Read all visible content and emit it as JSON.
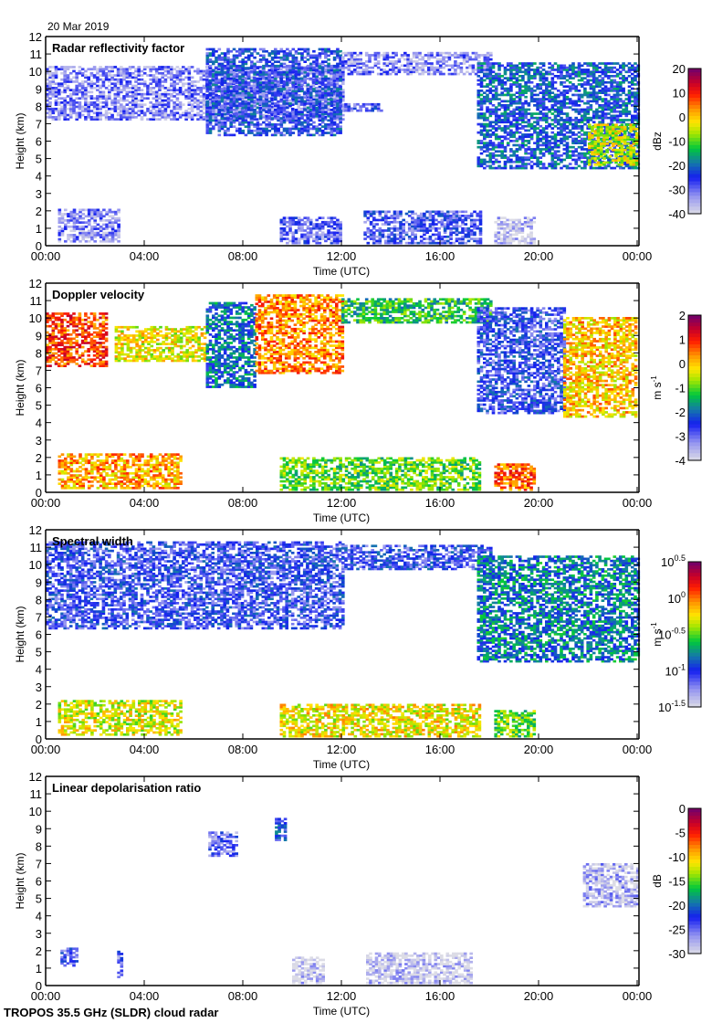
{
  "figure": {
    "date": "20 Mar 2019",
    "footer": "TROPOS 35.5 GHz (SLDR) cloud radar"
  },
  "chart_data": [
    {
      "type": "heatmap",
      "title": "Radar reflectivity factor",
      "xlabel": "Time (UTC)",
      "ylabel": "Height (km)",
      "x_ticks": [
        "00:00",
        "04:00",
        "08:00",
        "12:00",
        "16:00",
        "20:00",
        "00:00"
      ],
      "xlim_hours": [
        0,
        24
      ],
      "y_ticks": [
        0,
        1,
        2,
        3,
        4,
        5,
        6,
        7,
        8,
        9,
        10,
        11,
        12
      ],
      "ylim": [
        0,
        12
      ],
      "colorbar": {
        "label": "dBz",
        "ticks": [
          "-40",
          "-30",
          "-20",
          "-10",
          "0",
          "10",
          "20"
        ],
        "range": [
          -40,
          20
        ]
      },
      "features": [
        {
          "desc": "upper cloud layer",
          "t_start": 0,
          "t_end": 12.0,
          "h_bottom": 7.2,
          "h_top": 10.3,
          "value": -32
        },
        {
          "desc": "thickening cirrus",
          "t_start": 6.5,
          "t_end": 12.0,
          "h_bottom": 6.3,
          "h_top": 11.3,
          "value": -25
        },
        {
          "desc": "cirrus top",
          "t_start": 12.0,
          "t_end": 18.0,
          "h_bottom": 9.8,
          "h_top": 11.0,
          "value": -32
        },
        {
          "desc": "layer near 8 km",
          "t_start": 12.0,
          "t_end": 13.6,
          "h_bottom": 7.7,
          "h_top": 8.1,
          "value": -28
        },
        {
          "desc": "evening descending cloud",
          "t_start": 17.5,
          "t_end": 24.0,
          "h_bottom": 4.4,
          "h_top": 10.5,
          "value": -22
        },
        {
          "desc": "strong core near end",
          "t_start": 22.0,
          "t_end": 24.0,
          "h_bottom": 4.6,
          "h_top": 7.0,
          "value": -5
        },
        {
          "desc": "boundary layer echoes",
          "t_start": 0.5,
          "t_end": 3.0,
          "h_bottom": 0.2,
          "h_top": 2.1,
          "value": -32
        },
        {
          "desc": "boundary layer echoes",
          "t_start": 9.5,
          "t_end": 12.0,
          "h_bottom": 0.1,
          "h_top": 1.6,
          "value": -30
        },
        {
          "desc": "boundary layer echoes",
          "t_start": 12.9,
          "t_end": 17.6,
          "h_bottom": 0.1,
          "h_top": 2.0,
          "value": -28
        },
        {
          "desc": "boundary layer echoes",
          "t_start": 18.2,
          "t_end": 19.8,
          "h_bottom": 0.1,
          "h_top": 1.6,
          "value": -38
        }
      ]
    },
    {
      "type": "heatmap",
      "title": "Doppler velocity",
      "xlabel": "Time (UTC)",
      "ylabel": "Height (km)",
      "x_ticks": [
        "00:00",
        "04:00",
        "08:00",
        "12:00",
        "16:00",
        "20:00",
        "00:00"
      ],
      "xlim_hours": [
        0,
        24
      ],
      "y_ticks": [
        0,
        1,
        2,
        3,
        4,
        5,
        6,
        7,
        8,
        9,
        10,
        11,
        12
      ],
      "ylim": [
        0,
        12
      ],
      "colorbar": {
        "label": "m s-1",
        "ticks": [
          "-4",
          "-3",
          "-2",
          "-1",
          "0",
          "1",
          "2"
        ],
        "range": [
          -4,
          2
        ]
      },
      "features": [
        {
          "desc": "upper cloud early",
          "t_start": 0,
          "t_end": 2.5,
          "h_bottom": 7.2,
          "h_top": 10.3,
          "value": 0.8
        },
        {
          "desc": "upper cloud mid",
          "t_start": 2.8,
          "t_end": 6.5,
          "h_bottom": 7.5,
          "h_top": 9.5,
          "value": -0.3
        },
        {
          "desc": "fall streaks",
          "t_start": 6.5,
          "t_end": 8.5,
          "h_bottom": 6.0,
          "h_top": 10.8,
          "value": -2.0
        },
        {
          "desc": "updraft region",
          "t_start": 8.5,
          "t_end": 12.0,
          "h_bottom": 6.8,
          "h_top": 11.3,
          "value": 0.4
        },
        {
          "desc": "cirrus top",
          "t_start": 12.0,
          "t_end": 18.0,
          "h_bottom": 9.7,
          "h_top": 11.1,
          "value": -1.3
        },
        {
          "desc": "evening cloud",
          "t_start": 17.5,
          "t_end": 21.0,
          "h_bottom": 4.5,
          "h_top": 10.5,
          "value": -2.6
        },
        {
          "desc": "late cloud",
          "t_start": 21.0,
          "t_end": 24.0,
          "h_bottom": 4.3,
          "h_top": 10.0,
          "value": 0.0
        },
        {
          "desc": "boundary layer",
          "t_start": 0.5,
          "t_end": 5.5,
          "h_bottom": 0.2,
          "h_top": 2.2,
          "value": 0.2
        },
        {
          "desc": "boundary layer",
          "t_start": 9.5,
          "t_end": 17.6,
          "h_bottom": 0.1,
          "h_top": 2.0,
          "value": -1.0
        },
        {
          "desc": "boundary layer",
          "t_start": 18.2,
          "t_end": 19.8,
          "h_bottom": 0.1,
          "h_top": 1.6,
          "value": 0.6
        }
      ]
    },
    {
      "type": "heatmap",
      "title": "Spectral width",
      "xlabel": "Time (UTC)",
      "ylabel": "Height (km)",
      "x_ticks": [
        "00:00",
        "04:00",
        "08:00",
        "12:00",
        "16:00",
        "20:00",
        "00:00"
      ],
      "xlim_hours": [
        0,
        24
      ],
      "y_ticks": [
        0,
        1,
        2,
        3,
        4,
        5,
        6,
        7,
        8,
        9,
        10,
        11,
        12
      ],
      "ylim": [
        0,
        12
      ],
      "colorbar": {
        "label": "m s-1",
        "ticks": [
          "10^-1.5",
          "10^-1",
          "10^-0.5",
          "10^0",
          "10^0.5"
        ],
        "range_log10": [
          -1.5,
          0.5
        ],
        "scale": "log"
      },
      "features": [
        {
          "desc": "upper cloud",
          "t_start": 0,
          "t_end": 12.0,
          "h_bottom": 6.3,
          "h_top": 11.3,
          "value_log10": -1.05
        },
        {
          "desc": "cirrus top",
          "t_start": 12.0,
          "t_end": 18.0,
          "h_bottom": 9.7,
          "h_top": 11.1,
          "value_log10": -1.05
        },
        {
          "desc": "evening cloud",
          "t_start": 17.5,
          "t_end": 24.0,
          "h_bottom": 4.4,
          "h_top": 10.5,
          "value_log10": -0.8
        },
        {
          "desc": "boundary layer",
          "t_start": 0.5,
          "t_end": 5.5,
          "h_bottom": 0.2,
          "h_top": 2.2,
          "value_log10": -0.3
        },
        {
          "desc": "boundary layer",
          "t_start": 9.5,
          "t_end": 17.6,
          "h_bottom": 0.1,
          "h_top": 2.0,
          "value_log10": -0.25
        },
        {
          "desc": "boundary layer",
          "t_start": 18.2,
          "t_end": 19.8,
          "h_bottom": 0.1,
          "h_top": 1.6,
          "value_log10": -0.5
        }
      ]
    },
    {
      "type": "heatmap",
      "title": "Linear depolarisation ratio",
      "xlabel": "Time (UTC)",
      "ylabel": "Height (km)",
      "x_ticks": [
        "00:00",
        "04:00",
        "08:00",
        "12:00",
        "16:00",
        "20:00",
        "00:00"
      ],
      "xlim_hours": [
        0,
        24
      ],
      "y_ticks": [
        0,
        1,
        2,
        3,
        4,
        5,
        6,
        7,
        8,
        9,
        10,
        11,
        12
      ],
      "ylim": [
        0,
        12
      ],
      "colorbar": {
        "label": "dB",
        "ticks": [
          "-30",
          "-25",
          "-20",
          "-15",
          "-10",
          "-5",
          "0"
        ],
        "range": [
          -30,
          0
        ]
      },
      "features": [
        {
          "desc": "boundary layer early",
          "t_start": 0.6,
          "t_end": 1.3,
          "h_bottom": 1.1,
          "h_top": 2.1,
          "value": -24
        },
        {
          "desc": "streak",
          "t_start": 2.9,
          "t_end": 3.1,
          "h_bottom": 0.2,
          "h_top": 2.0,
          "value": -25
        },
        {
          "desc": "cirrus patch",
          "t_start": 6.6,
          "t_end": 7.8,
          "h_bottom": 7.4,
          "h_top": 8.8,
          "value": -25
        },
        {
          "desc": "cirrus patch",
          "t_start": 9.3,
          "t_end": 9.7,
          "h_bottom": 8.3,
          "h_top": 9.5,
          "value": -22
        },
        {
          "desc": "boundary layer",
          "t_start": 10.0,
          "t_end": 11.2,
          "h_bottom": 0.1,
          "h_top": 1.6,
          "value": -29
        },
        {
          "desc": "boundary layer",
          "t_start": 13.0,
          "t_end": 17.2,
          "h_bottom": 0.1,
          "h_top": 1.9,
          "value": -29
        },
        {
          "desc": "evening cloud",
          "t_start": 21.8,
          "t_end": 24.0,
          "h_bottom": 4.5,
          "h_top": 7.0,
          "value": -28
        }
      ]
    }
  ]
}
